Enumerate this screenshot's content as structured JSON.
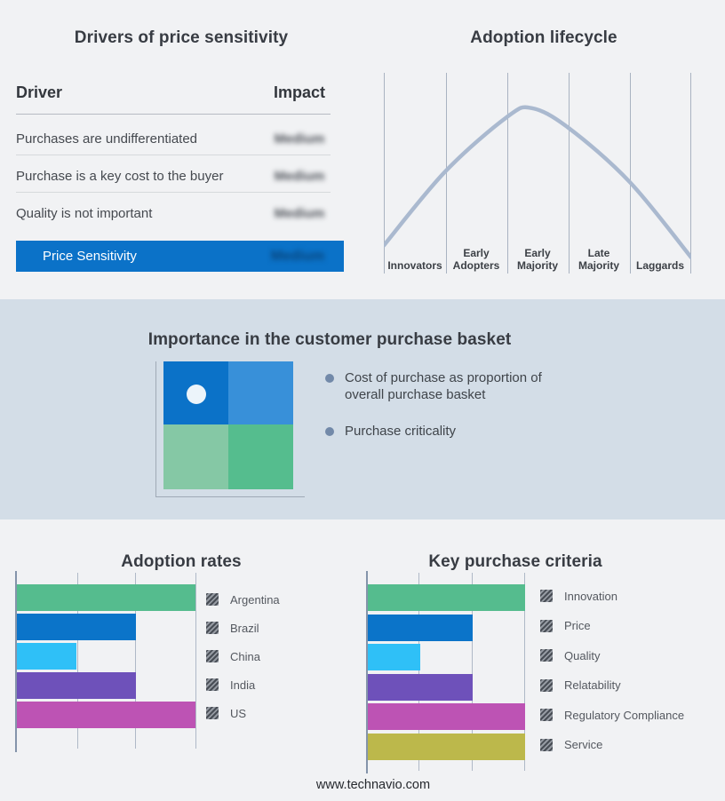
{
  "drivers_panel": {
    "title": "Drivers of price sensitivity",
    "columns": {
      "driver": "Driver",
      "impact": "Impact"
    },
    "rows": [
      {
        "driver": "Purchases are undifferentiated",
        "impact": "Medium",
        "impact_obscured": true
      },
      {
        "driver": "Purchase is a key cost to the buyer",
        "impact": "Medium",
        "impact_obscured": true
      },
      {
        "driver": "Quality is not important",
        "impact": "Medium",
        "impact_obscured": true
      }
    ],
    "summary_row": {
      "label": "Price Sensitivity",
      "impact": "Medium",
      "impact_obscured": true,
      "highlight_color": "#0b72c8"
    }
  },
  "purchase_basket": {
    "title": "Importance in the customer purchase basket",
    "bullets": [
      "Cost of purchase as proportion of overall purchase basket",
      "Purchase criticality"
    ],
    "quadrant_colors": {
      "top_left": "#0b72c8",
      "top_right": "#3890d9",
      "bottom_left": "#85c8a5",
      "bottom_right": "#55bd8e"
    },
    "marker": "white-dot-in-top-left-quadrant",
    "band_background": "#d3dde7"
  },
  "footer": {
    "url": "www.technavio.com"
  },
  "chart_data": [
    {
      "type": "line",
      "title": "Adoption lifecycle",
      "shape": "bell-curve",
      "categories": [
        "Innovators",
        "Early Adopters",
        "Early Majority",
        "Late Majority",
        "Laggards"
      ],
      "points": [
        [
          0,
          0.08
        ],
        [
          0.2,
          0.57
        ],
        [
          0.4,
          0.93
        ],
        [
          0.48,
          0.99
        ],
        [
          0.6,
          0.86
        ],
        [
          0.8,
          0.5
        ],
        [
          1,
          0
        ]
      ],
      "line_color": "#aab9cf",
      "grid": "vertical category dividers only",
      "legend_position": "none"
    },
    {
      "type": "bar",
      "title": "Adoption rates",
      "orientation": "horizontal",
      "categories": [
        "Argentina",
        "Brazil",
        "China",
        "India",
        "US"
      ],
      "values": [
        3,
        2,
        1,
        2,
        3
      ],
      "xlim": [
        0,
        3
      ],
      "xlabel": "",
      "ylabel": "",
      "grid": "vertical gridlines at 1, 2, 3 (unlabeled)",
      "colors": [
        "#55bc8e",
        "#0b74c9",
        "#2fc0f7",
        "#6e51ba",
        "#bd53b4"
      ],
      "legend_position": "right",
      "legend_swatch_style": "diagonal-hatch-gray"
    },
    {
      "type": "bar",
      "title": "Key purchase criteria",
      "orientation": "horizontal",
      "categories": [
        "Innovation",
        "Price",
        "Quality",
        "Relatability",
        "Regulatory Compliance",
        "Service"
      ],
      "values": [
        3,
        2,
        1,
        2,
        3,
        3
      ],
      "xlim": [
        0,
        3
      ],
      "xlabel": "",
      "ylabel": "",
      "grid": "vertical gridlines at 1, 2, 3 (unlabeled)",
      "colors": [
        "#55bc8e",
        "#0b74c9",
        "#2fc0f7",
        "#6e51ba",
        "#bd53b4",
        "#bcb84b"
      ],
      "legend_position": "right",
      "legend_swatch_style": "diagonal-hatch-gray"
    }
  ]
}
